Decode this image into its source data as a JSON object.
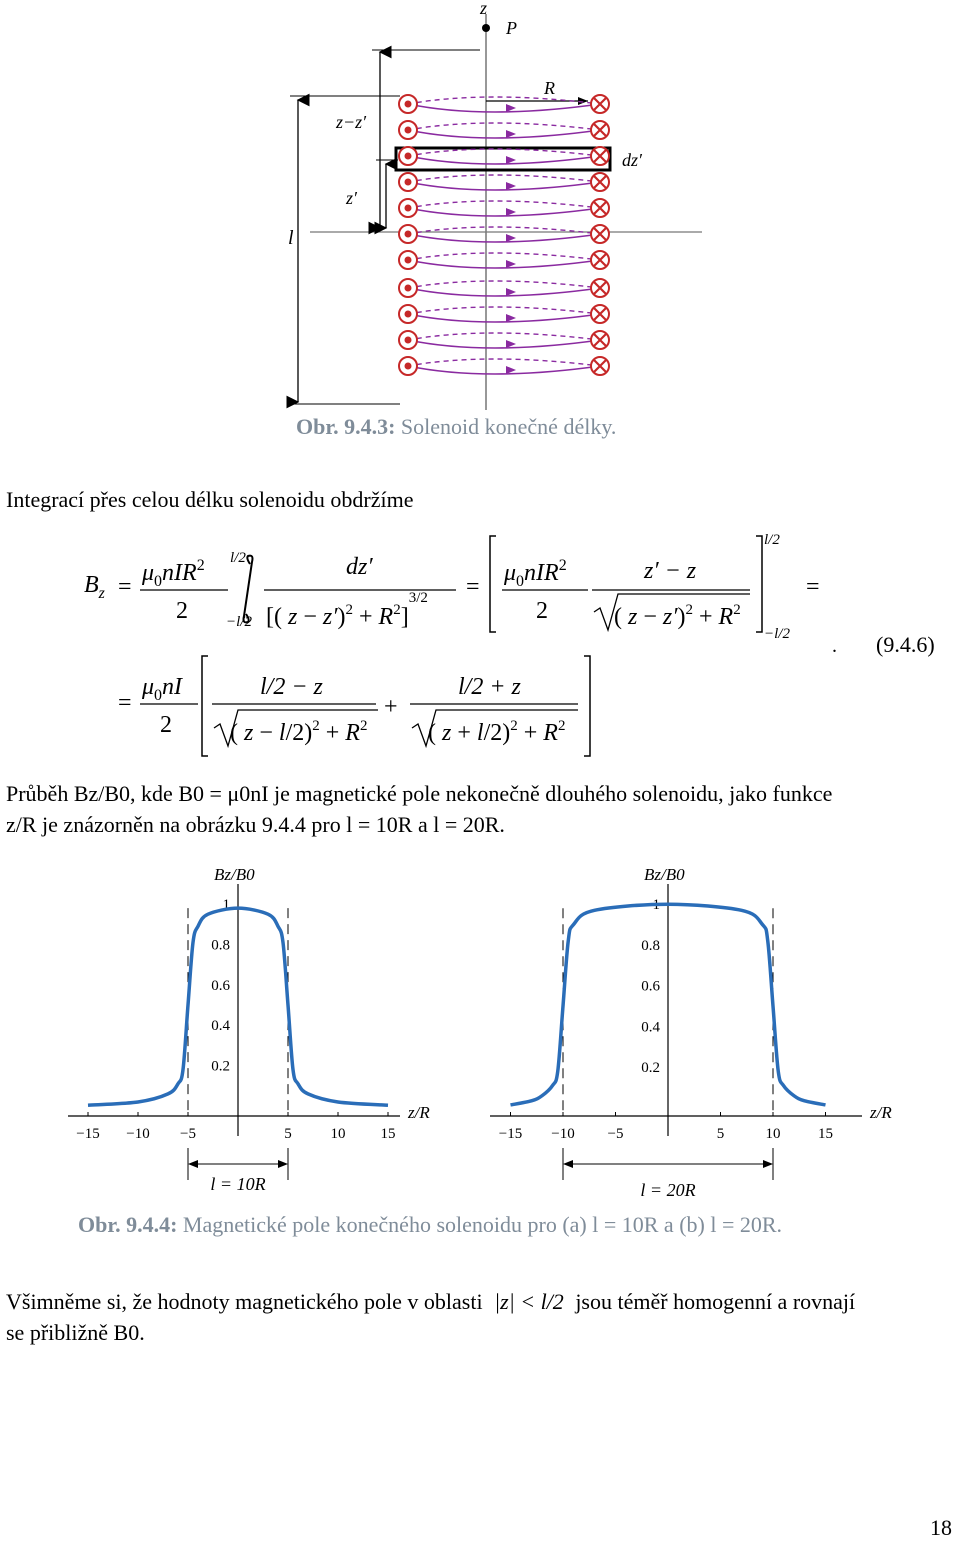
{
  "figure1": {
    "label_z_axis": "z",
    "label_P": "P",
    "label_R": "R",
    "label_zz": "z−z′",
    "label_zprime": "z′",
    "label_l": "l",
    "label_dz": "dz′",
    "caption_number": "Obr. 9.4.3:",
    "caption_text": " Solenoid konečné délky."
  },
  "intro_text": "Integrací přes celou délku solenoidu obdržíme",
  "equation": {
    "number": "(9.4.6)",
    "lhs": "Bz",
    "term1_num": "μ0nIR²",
    "term1_den": "2",
    "integral_upper": "l/2",
    "integral_lower": "−l/2",
    "integrand_num": "dz′",
    "integrand_den": "[(z − z′)² + R²]^(3/2)",
    "term2_num": "μ0nIR²",
    "term2_den": "2",
    "bracket_num": "z′ − z",
    "bracket_den": "√((z − z′)² + R²)",
    "limit_upper": "l/2",
    "limit_lower": "−l/2",
    "line2_prefix_num": "μ0nI",
    "line2_prefix_den": "2",
    "frac_a_num": "l/2 − z",
    "frac_a_den": "√((z − l/2)² + R²)",
    "frac_b_num": "l/2 + z",
    "frac_b_den": "√((z + l/2)² + R²)"
  },
  "paragraph2": {
    "line1": "Průběh Bz/B0, kde B0 = μ0nI je magnetické pole nekonečně dlouhého solenoidu, jako funkce",
    "line2": "z/R je znázorněn na obrázku 9.4.4 pro l = 10R a l = 20R."
  },
  "chart_data": [
    {
      "type": "line",
      "ylabel": "Bz/B0",
      "xlabel": "z/R",
      "x_ticks": [
        -15,
        -10,
        -5,
        5,
        10,
        15
      ],
      "y_ticks": [
        0.2,
        0.4,
        0.6,
        0.8,
        1
      ],
      "xlim": [
        -16,
        16
      ],
      "ylim": [
        0,
        1.05
      ],
      "l_over_R": 10,
      "annotation": "l = 10R",
      "series_color": "#2a6db8",
      "x": [
        -15,
        -10,
        -7,
        -6,
        -5.5,
        -5,
        -4.5,
        -4,
        -3,
        0,
        3,
        4,
        4.5,
        5,
        5.5,
        6,
        7,
        10,
        15
      ],
      "y": [
        0.004,
        0.02,
        0.06,
        0.11,
        0.18,
        0.5,
        0.81,
        0.89,
        0.95,
        0.98,
        0.95,
        0.89,
        0.81,
        0.5,
        0.18,
        0.11,
        0.06,
        0.02,
        0.004
      ]
    },
    {
      "type": "line",
      "ylabel": "Bz/B0",
      "xlabel": "z/R",
      "x_ticks": [
        -15,
        -10,
        -5,
        5,
        10,
        15
      ],
      "y_ticks": [
        0.2,
        0.4,
        0.6,
        0.8,
        1
      ],
      "xlim": [
        -16,
        16
      ],
      "ylim": [
        0,
        1.05
      ],
      "l_over_R": 20,
      "annotation": "l = 20R",
      "series_color": "#2a6db8",
      "x": [
        -15,
        -13,
        -12,
        -11,
        -10.5,
        -10,
        -9.5,
        -9,
        -7,
        0,
        7,
        9,
        9.5,
        10,
        10.5,
        11,
        12,
        13,
        15
      ],
      "y": [
        0.015,
        0.035,
        0.06,
        0.11,
        0.18,
        0.5,
        0.82,
        0.9,
        0.97,
        1.0,
        0.97,
        0.9,
        0.82,
        0.5,
        0.18,
        0.11,
        0.06,
        0.035,
        0.015
      ]
    }
  ],
  "figure2_caption": {
    "number": "Obr. 9.4.4:",
    "text": " Magnetické pole konečného solenoidu pro (a) l = 10R a (b) l = 20R."
  },
  "paragraph3": {
    "line1_before": "Všimněme si, že hodnoty magnetického pole v oblasti",
    "condition": "|z| < l/2",
    "line1_after": "jsou téměř homogenní a rovnají",
    "line2": "se přibližně B0."
  },
  "page_number": "18"
}
